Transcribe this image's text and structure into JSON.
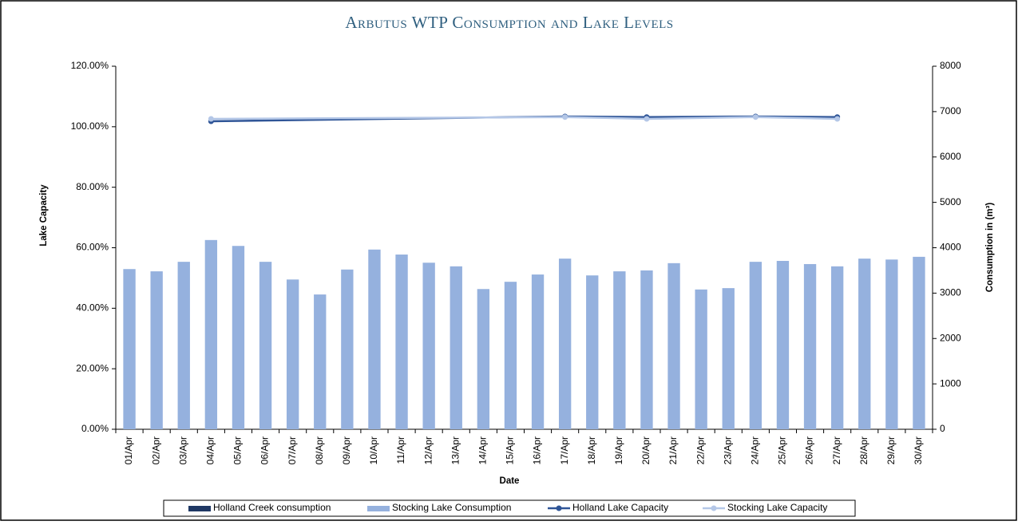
{
  "chart_data": {
    "type": "bar_line",
    "title": "Arbutus WTP Consumption and Lake Levels",
    "x_label": "Date",
    "y_label": "Lake Capacity",
    "y2_label": "Consumption in (m³)",
    "categories": [
      "01/Apr",
      "02/Apr",
      "03/Apr",
      "04/Apr",
      "05/Apr",
      "06/Apr",
      "07/Apr",
      "08/Apr",
      "09/Apr",
      "10/Apr",
      "11/Apr",
      "12/Apr",
      "13/Apr",
      "14/Apr",
      "15/Apr",
      "16/Apr",
      "17/Apr",
      "18/Apr",
      "19/Apr",
      "20/Apr",
      "21/Apr",
      "22/Apr",
      "23/Apr",
      "24/Apr",
      "25/Apr",
      "26/Apr",
      "27/Apr",
      "28/Apr",
      "29/Apr",
      "30/Apr"
    ],
    "series": [
      {
        "name": "Holland Creek consumption",
        "kind": "bar",
        "axis": "y2",
        "color": "#1f3864",
        "values": [
          null,
          null,
          null,
          null,
          null,
          null,
          null,
          null,
          null,
          null,
          null,
          null,
          null,
          null,
          null,
          null,
          null,
          null,
          null,
          null,
          null,
          null,
          null,
          null,
          null,
          null,
          null,
          null,
          null,
          null
        ]
      },
      {
        "name": "Stocking Lake Consumption",
        "kind": "bar",
        "axis": "y2",
        "color": "#95b1de",
        "values": [
          3530,
          3480,
          3690,
          4170,
          4040,
          3690,
          3300,
          2970,
          3520,
          3960,
          3850,
          3670,
          3590,
          3090,
          3250,
          3410,
          3760,
          3390,
          3480,
          3500,
          3660,
          3080,
          3110,
          3690,
          3710,
          3640,
          3590,
          3760,
          3740,
          3800
        ]
      },
      {
        "name": "Holland Lake Capacity",
        "kind": "line",
        "axis": "y",
        "color": "#2f5597",
        "x": [
          "04/Apr",
          "17/Apr",
          "20/Apr",
          "24/Apr",
          "27/Apr"
        ],
        "values": [
          101.8,
          103.4,
          103.2,
          103.4,
          103.2
        ]
      },
      {
        "name": "Stocking Lake Capacity",
        "kind": "line",
        "axis": "y",
        "color": "#b4c7e7",
        "x": [
          "04/Apr",
          "17/Apr",
          "20/Apr",
          "24/Apr",
          "27/Apr"
        ],
        "values": [
          102.6,
          103.2,
          102.6,
          103.2,
          102.6
        ]
      }
    ],
    "ylim": [
      0,
      120
    ],
    "yticks": [
      {
        "value": 0,
        "label": "0.00%"
      },
      {
        "value": 20,
        "label": "20.00%"
      },
      {
        "value": 40,
        "label": "40.00%"
      },
      {
        "value": 60,
        "label": "60.00%"
      },
      {
        "value": 80,
        "label": "80.00%"
      },
      {
        "value": 100,
        "label": "100.00%"
      },
      {
        "value": 120,
        "label": "120.00%"
      }
    ],
    "y2lim": [
      0,
      8000
    ],
    "y2ticks": [
      0,
      1000,
      2000,
      3000,
      4000,
      5000,
      6000,
      7000,
      8000
    ],
    "legend": "bottom",
    "grid": false
  }
}
